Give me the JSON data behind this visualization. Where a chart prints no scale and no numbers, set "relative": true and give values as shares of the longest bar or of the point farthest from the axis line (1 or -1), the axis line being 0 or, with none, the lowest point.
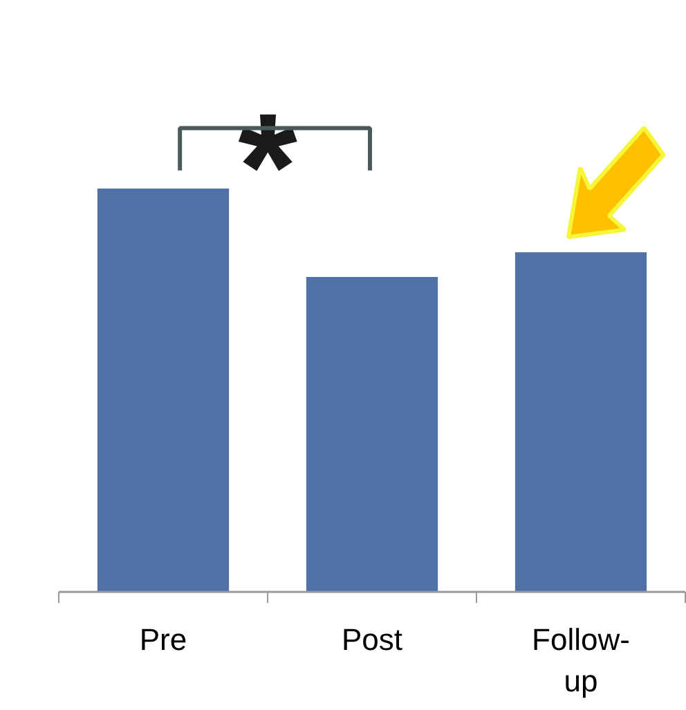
{
  "chart_data": {
    "type": "bar",
    "relative": true,
    "categories": [
      "Pre",
      "Post",
      "Follow-up"
    ],
    "values": [
      1,
      0.781,
      0.842
    ],
    "color": "#4f71a6",
    "annotations": [
      "*"
    ]
  }
}
